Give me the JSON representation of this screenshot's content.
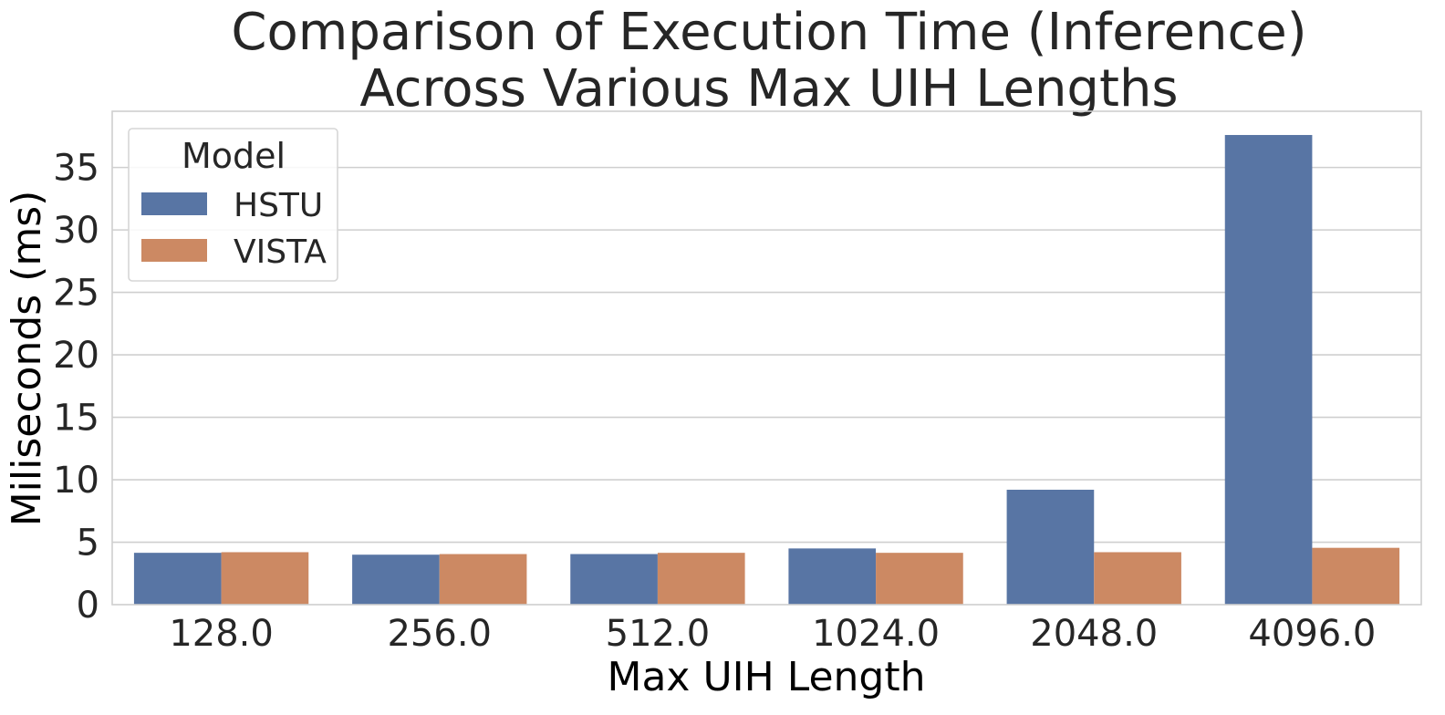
{
  "chart_data": {
    "type": "bar",
    "title": "Comparison of Execution Time (Inference)",
    "subtitle": "Across Various Max UIH Lengths",
    "xlabel": "Max UIH Length",
    "ylabel": "Miliseconds (ms)",
    "categories": [
      "128.0",
      "256.0",
      "512.0",
      "1024.0",
      "2048.0",
      "4096.0"
    ],
    "series": [
      {
        "name": "HSTU",
        "color": "#5875a4",
        "values": [
          4.15,
          4.0,
          4.05,
          4.5,
          9.2,
          37.6
        ]
      },
      {
        "name": "VISTA",
        "color": "#cc8963",
        "values": [
          4.2,
          4.05,
          4.15,
          4.15,
          4.2,
          4.55
        ]
      }
    ],
    "ylim": [
      0,
      39.5
    ],
    "yticks": [
      "0",
      "5",
      "10",
      "15",
      "20",
      "25",
      "30",
      "35"
    ],
    "ytick_values": [
      0,
      5,
      10,
      15,
      20,
      25,
      30,
      35
    ],
    "grid": true,
    "legend": {
      "title": "Model",
      "placement": "top-left"
    }
  }
}
